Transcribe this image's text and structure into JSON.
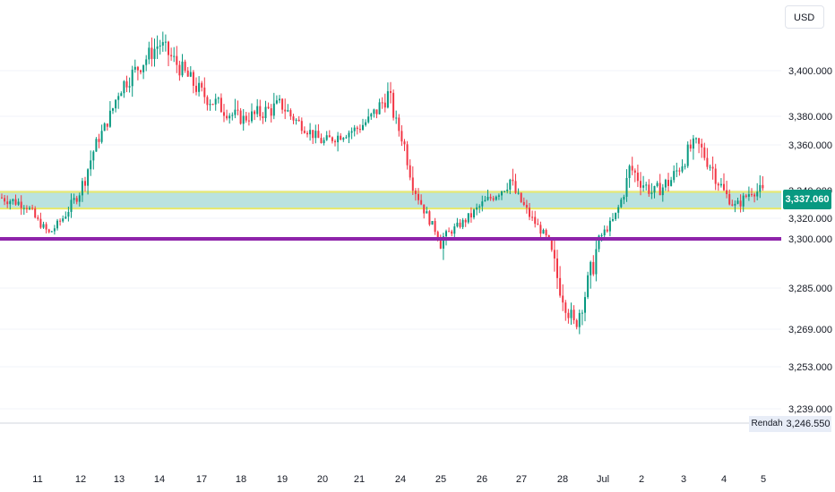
{
  "chart_data": {
    "type": "candlestick",
    "currency": "USD",
    "y_ticks": [
      "3,400.000",
      "3,380.000",
      "3,360.000",
      "3,340.000",
      "3,320.000",
      "3,300.000",
      "3,285.000",
      "3,269.000",
      "3,253.000",
      "3,239.000"
    ],
    "x_ticks": [
      "11",
      "12",
      "13",
      "14",
      "17",
      "18",
      "19",
      "20",
      "21",
      "24",
      "25",
      "26",
      "27",
      "28",
      "Jul",
      "2",
      "3",
      "4",
      "5"
    ],
    "last_price": "3,337.060",
    "low_label": "Rendah",
    "low_value": "3,246.550",
    "zone": {
      "low": 3327,
      "high": 3339
    },
    "support_line": 3300,
    "key_points": [
      {
        "x": "11",
        "price": 3330
      },
      {
        "x": "11",
        "price": 3305
      },
      {
        "x": "12",
        "price": 3340
      },
      {
        "x": "13",
        "price": 3392
      },
      {
        "x": "14",
        "price": 3412
      },
      {
        "x": "17",
        "price": 3390
      },
      {
        "x": "18",
        "price": 3378
      },
      {
        "x": "19",
        "price": 3385
      },
      {
        "x": "20",
        "price": 3362
      },
      {
        "x": "21",
        "price": 3372
      },
      {
        "x": "24",
        "price": 3390
      },
      {
        "x": "24",
        "price": 3345
      },
      {
        "x": "25",
        "price": 3300
      },
      {
        "x": "26",
        "price": 3330
      },
      {
        "x": "27",
        "price": 3345
      },
      {
        "x": "27",
        "price": 3318
      },
      {
        "x": "28",
        "price": 3295
      },
      {
        "x": "28",
        "price": 3270
      },
      {
        "x": "Jul",
        "price": 3290
      },
      {
        "x": "Jul",
        "price": 3320
      },
      {
        "x": "2",
        "price": 3350
      },
      {
        "x": "2",
        "price": 3338
      },
      {
        "x": "3",
        "price": 3345
      },
      {
        "x": "3",
        "price": 3362
      },
      {
        "x": "4",
        "price": 3350
      },
      {
        "x": "4",
        "price": 3328
      },
      {
        "x": "5",
        "price": 3340
      },
      {
        "x": "5",
        "price": 3337
      }
    ]
  }
}
